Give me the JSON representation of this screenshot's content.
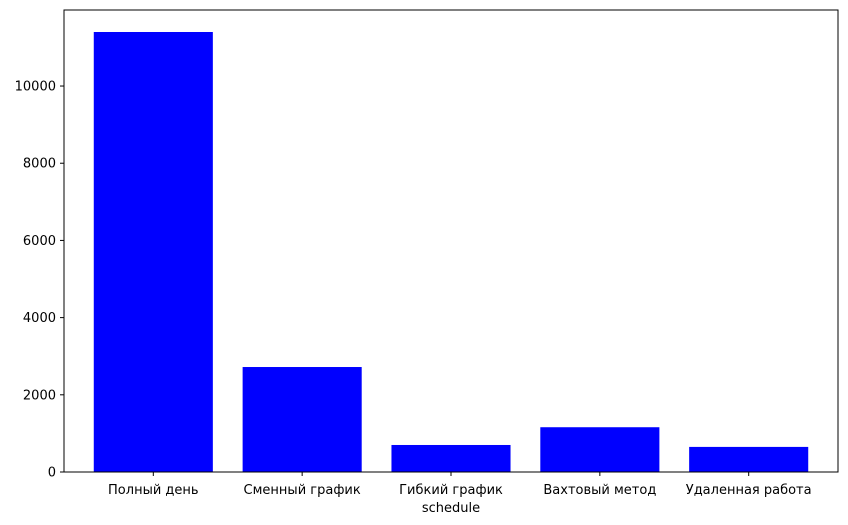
{
  "chart_data": {
    "type": "bar",
    "title": "",
    "xlabel": "schedule",
    "ylabel": "",
    "categories": [
      "Полный день",
      "Сменный график",
      "Гибкий график",
      "Вахтовый метод",
      "Удаленная работа"
    ],
    "values": [
      11400,
      2720,
      700,
      1160,
      650
    ],
    "ylim": [
      0,
      11970
    ],
    "yticks": [
      0,
      2000,
      4000,
      6000,
      8000,
      10000
    ],
    "bar_color": "#0000ff",
    "grid": false,
    "legend": "none"
  }
}
